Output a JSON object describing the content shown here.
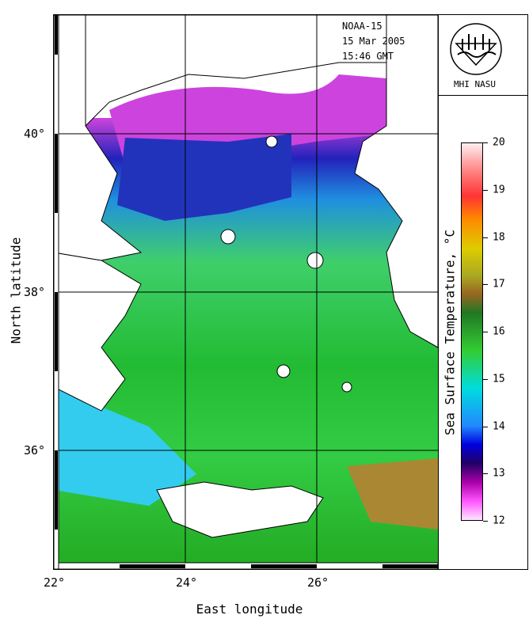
{
  "satellite": {
    "name": "NOAA-15",
    "date": "15 Mar 2005",
    "time": "15:46 GMT"
  },
  "logo": {
    "label": "MHI NASU",
    "icon": "mhi-wave-logo-icon"
  },
  "axes": {
    "x_title": "East longitude",
    "y_title": "North latitude",
    "x_ticks": [
      "22°",
      "24°",
      "26°"
    ],
    "y_ticks": [
      "40°",
      "38°",
      "36°"
    ]
  },
  "colorbar": {
    "title": "Sea Surface Temperature, °C",
    "ticks": [
      "20",
      "19",
      "18",
      "17",
      "16",
      "15",
      "14",
      "13",
      "12"
    ],
    "range": [
      12,
      20
    ]
  },
  "colors": {
    "cold": "#ff99ff",
    "cool": "#0000aa",
    "mid": "#00ccff",
    "warm": "#22bb22",
    "hot": "#aa8822",
    "land": "#ffffff"
  }
}
